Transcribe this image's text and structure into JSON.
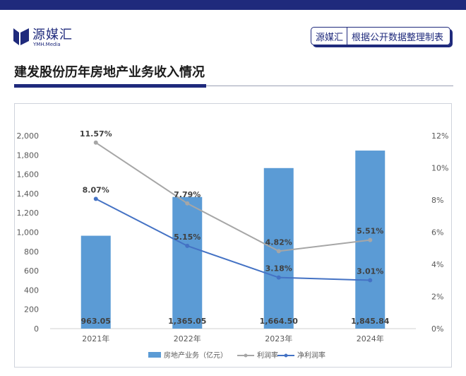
{
  "header": {
    "logo_name": "源媒汇",
    "logo_sub": "YMH.Media",
    "source_brand": "源媒汇",
    "source_text": "根据公开数据整理制表",
    "title": "建发股份历年房地产业务收入情况"
  },
  "colors": {
    "brand": "#1f2a7c",
    "bar": "#5b9bd5",
    "line_profit": "#a6a6a6",
    "line_net": "#4472c4"
  },
  "chart_data": {
    "type": "bar",
    "categories": [
      "2021年",
      "2022年",
      "2023年",
      "2024年"
    ],
    "series": [
      {
        "name": "房地产业务（亿元）",
        "type": "bar",
        "axis": "left",
        "values": [
          963.05,
          1365.05,
          1664.5,
          1845.84
        ],
        "labels": [
          "963.05",
          "1,365.05",
          "1,664.50",
          "1,845.84"
        ]
      },
      {
        "name": "利润率",
        "type": "line",
        "axis": "right",
        "values": [
          11.57,
          7.79,
          4.82,
          5.51
        ],
        "labels": [
          "11.57%",
          "7.79%",
          "4.82%",
          "5.51%"
        ]
      },
      {
        "name": "净利润率",
        "type": "line",
        "axis": "right",
        "values": [
          8.07,
          5.15,
          3.18,
          3.01
        ],
        "labels": [
          "8.07%",
          "5.15%",
          "3.18%",
          "3.01%"
        ]
      }
    ],
    "y_left": {
      "min": 0,
      "max": 2000,
      "ticks": [
        0,
        200,
        400,
        600,
        800,
        1000,
        1200,
        1400,
        1600,
        1800,
        2000
      ],
      "tick_labels": [
        "0",
        "200",
        "400",
        "600",
        "800",
        "1,000",
        "1,200",
        "1,400",
        "1,600",
        "1,800",
        "2,000"
      ]
    },
    "y_right": {
      "min": 0,
      "max": 12,
      "ticks": [
        0,
        2,
        4,
        6,
        8,
        10,
        12
      ],
      "tick_labels": [
        "0%",
        "2%",
        "4%",
        "6%",
        "8%",
        "10%",
        "12%"
      ]
    },
    "legend_position": "bottom",
    "grid": false
  }
}
